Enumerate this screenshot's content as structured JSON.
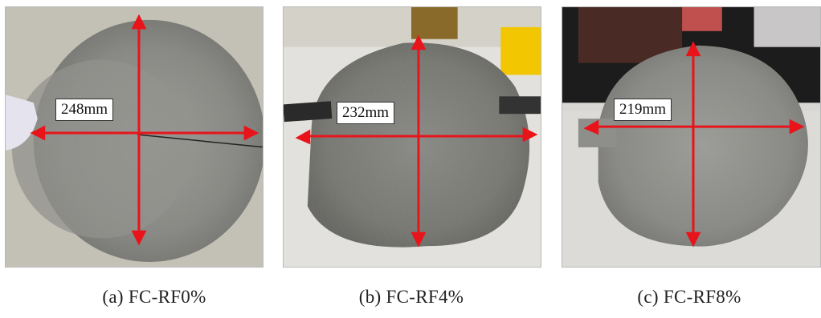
{
  "panels": [
    {
      "measurement": "248mm",
      "caption": "(a) FC-RF0%"
    },
    {
      "measurement": "232mm",
      "caption": "(b) FC-RF4%"
    },
    {
      "measurement": "219mm",
      "caption": "(c) FC-RF8%"
    }
  ],
  "colors": {
    "arrow": "#e8141a",
    "concrete": "#8a8a86",
    "label_bg": "#ffffff"
  }
}
